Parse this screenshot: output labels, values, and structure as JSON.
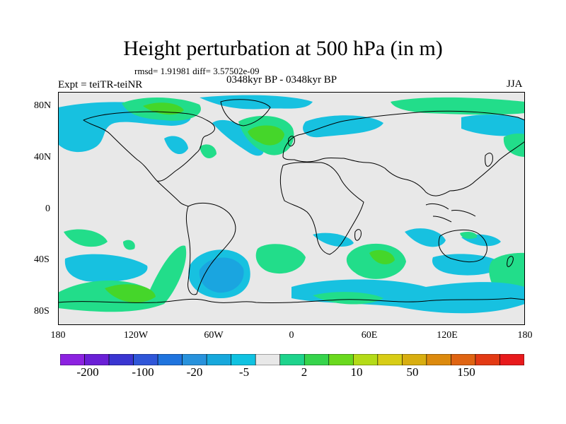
{
  "title": "Height perturbation at 500 hPa (in m)",
  "stats": "rmsd= 1.91981 diff= 3.57502e-09",
  "left_label": "Expt = teiTR-teiNR",
  "center_label": "0348kyr BP - 0348kyr BP",
  "right_label": "JJA",
  "axes": {
    "lat_ticks": [
      "80N",
      "40N",
      "0",
      "40S",
      "80S"
    ],
    "lon_ticks": [
      "180",
      "120W",
      "60W",
      "0",
      "60E",
      "120E",
      "180"
    ]
  },
  "colorbar": {
    "colors": [
      "#8c22e0",
      "#6a1fd6",
      "#3a35d1",
      "#2f56d8",
      "#1f74de",
      "#2892dc",
      "#17a8dc",
      "#10c2e1",
      "#e8e8e8",
      "#1ed38c",
      "#36d44c",
      "#6ad91e",
      "#b4db18",
      "#d8cd16",
      "#d8ae10",
      "#dc8a0e",
      "#df6412",
      "#e33a14",
      "#e81a1c"
    ],
    "labels": [
      "-200",
      "-100",
      "-20",
      "-5",
      "2",
      "10",
      "50",
      "150"
    ]
  },
  "fill_colors": {
    "neutral": "#e8e8e8",
    "neg_light": "#17c1e0",
    "neg_mid": "#1aa5e0",
    "neg_strong": "#2f8fe0",
    "pos_light": "#22dd8a",
    "pos_strong": "#45d62a"
  }
}
